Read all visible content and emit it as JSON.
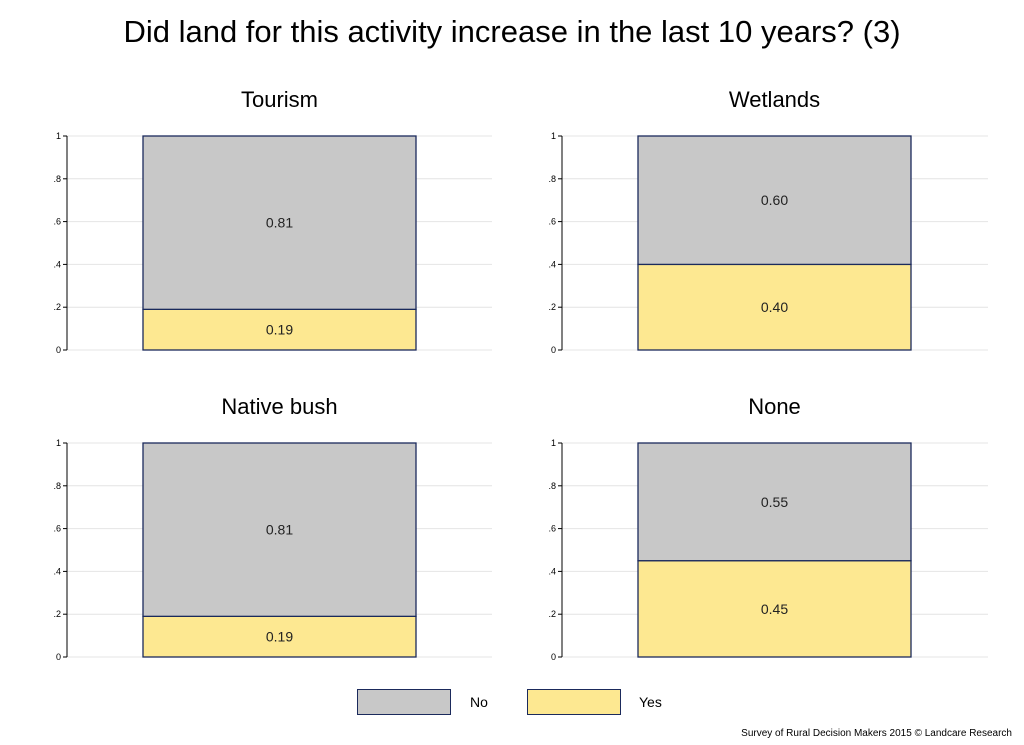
{
  "title": "Did land for this activity increase in the last 10 years? (3)",
  "colors": {
    "no": "#c8c8c8",
    "yes": "#fde891",
    "border": "#1b2a5c",
    "grid": "#e4e4e4"
  },
  "legend": {
    "no": "No",
    "yes": "Yes"
  },
  "footer": "Survey of Rural Decision Makers 2015 © Landcare Research",
  "chart_data": [
    {
      "type": "bar",
      "title": "Tourism",
      "stacked": true,
      "ylim": [
        0,
        1
      ],
      "yticks": [
        "0",
        ".2",
        ".4",
        ".6",
        ".8",
        "1"
      ],
      "series": [
        {
          "name": "Yes",
          "values": [
            0.19
          ],
          "label": "0.19"
        },
        {
          "name": "No",
          "values": [
            0.81
          ],
          "label": "0.81"
        }
      ]
    },
    {
      "type": "bar",
      "title": "Wetlands",
      "stacked": true,
      "ylim": [
        0,
        1
      ],
      "yticks": [
        "0",
        ".2",
        ".4",
        ".6",
        ".8",
        "1"
      ],
      "series": [
        {
          "name": "Yes",
          "values": [
            0.4
          ],
          "label": "0.40"
        },
        {
          "name": "No",
          "values": [
            0.6
          ],
          "label": "0.60"
        }
      ]
    },
    {
      "type": "bar",
      "title": "Native bush",
      "stacked": true,
      "ylim": [
        0,
        1
      ],
      "yticks": [
        "0",
        ".2",
        ".4",
        ".6",
        ".8",
        "1"
      ],
      "series": [
        {
          "name": "Yes",
          "values": [
            0.19
          ],
          "label": "0.19"
        },
        {
          "name": "No",
          "values": [
            0.81
          ],
          "label": "0.81"
        }
      ]
    },
    {
      "type": "bar",
      "title": "None",
      "stacked": true,
      "ylim": [
        0,
        1
      ],
      "yticks": [
        "0",
        ".2",
        ".4",
        ".6",
        ".8",
        "1"
      ],
      "series": [
        {
          "name": "Yes",
          "values": [
            0.45
          ],
          "label": "0.45"
        },
        {
          "name": "No",
          "values": [
            0.55
          ],
          "label": "0.55"
        }
      ]
    }
  ]
}
